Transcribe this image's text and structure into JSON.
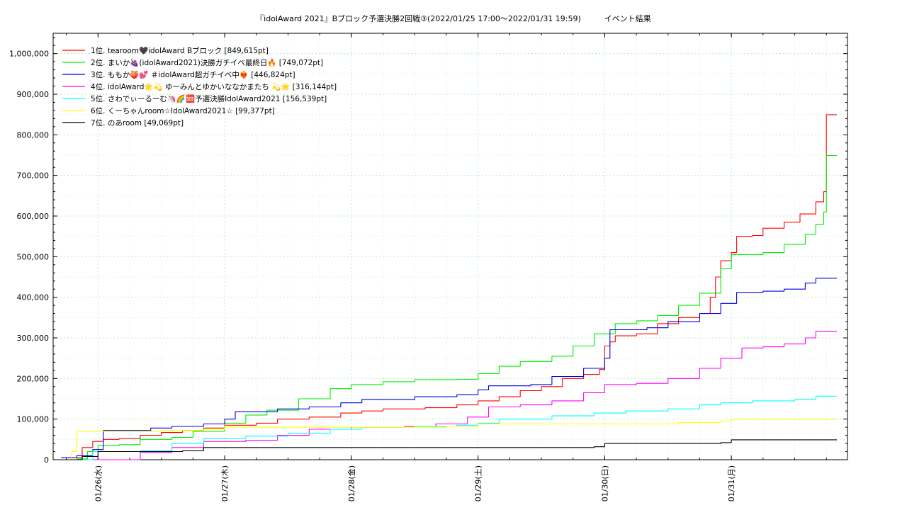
{
  "chart_data": {
    "type": "line",
    "title": "『idolAward 2021』Bブロック予選決勝2回戦③(2022/01/25 17:00～2022/01/31 19:59)　　　イベント結果",
    "xlabel": "",
    "ylabel": "",
    "x_range": [
      "2022/01/25 17:00",
      "2022/01/31 19:59"
    ],
    "ylim": [
      0,
      1050000
    ],
    "y_ticks": [
      0,
      100000,
      200000,
      300000,
      400000,
      500000,
      600000,
      700000,
      800000,
      900000,
      1000000
    ],
    "y_tick_labels": [
      "0",
      "100,000",
      "200,000",
      "300,000",
      "400,000",
      "500,000",
      "600,000",
      "700,000",
      "800,000",
      "900,000",
      "1,000,000"
    ],
    "x_ticks": [
      "01/26(水)",
      "01/27(木)",
      "01/28(金)",
      "01/29(土)",
      "01/30(日)",
      "01/31(月)"
    ],
    "grid": true,
    "legend_position": "top-left",
    "series": [
      {
        "name": "1位. tearoom🖤idolAward Bブロック [849,615pt]",
        "color": "#ff0000",
        "points": [
          [
            "01/25 17:00",
            0
          ],
          [
            "01/25 19:00",
            5000
          ],
          [
            "01/25 21:00",
            30000
          ],
          [
            "01/25 23:00",
            45000
          ],
          [
            "01/26 01:00",
            50000
          ],
          [
            "01/26 04:00",
            52000
          ],
          [
            "01/26 08:00",
            60000
          ],
          [
            "01/26 12:00",
            67000
          ],
          [
            "01/26 16:00",
            72000
          ],
          [
            "01/26 20:00",
            78000
          ],
          [
            "01/27 00:00",
            85000
          ],
          [
            "01/27 06:00",
            90000
          ],
          [
            "01/27 10:00",
            100000
          ],
          [
            "01/27 16:00",
            105000
          ],
          [
            "01/27 22:00",
            115000
          ],
          [
            "01/28 02:00",
            120000
          ],
          [
            "01/28 06:00",
            125000
          ],
          [
            "01/28 14:00",
            128000
          ],
          [
            "01/28 20:00",
            135000
          ],
          [
            "01/29 00:00",
            145000
          ],
          [
            "01/29 04:00",
            155000
          ],
          [
            "01/29 08:00",
            170000
          ],
          [
            "01/29 12:00",
            180000
          ],
          [
            "01/29 16:00",
            200000
          ],
          [
            "01/29 20:00",
            210000
          ],
          [
            "01/29 23:00",
            222000
          ],
          [
            "01/30 00:00",
            280000
          ],
          [
            "01/30 01:00",
            290000
          ],
          [
            "01/30 02:00",
            305000
          ],
          [
            "01/30 06:00",
            310000
          ],
          [
            "01/30 10:00",
            335000
          ],
          [
            "01/30 14:00",
            350000
          ],
          [
            "01/30 18:00",
            360000
          ],
          [
            "01/30 20:00",
            400000
          ],
          [
            "01/30 21:00",
            450000
          ],
          [
            "01/30 22:00",
            490000
          ],
          [
            "01/31 00:00",
            510000
          ],
          [
            "01/31 01:00",
            550000
          ],
          [
            "01/31 04:00",
            552000
          ],
          [
            "01/31 06:00",
            570000
          ],
          [
            "01/31 10:00",
            585000
          ],
          [
            "01/31 13:00",
            605000
          ],
          [
            "01/31 16:00",
            635000
          ],
          [
            "01/31 17:30",
            660000
          ],
          [
            "01/31 18:00",
            849615
          ],
          [
            "01/31 19:59",
            849615
          ]
        ]
      },
      {
        "name": "2位. まいか🍇(idolAward2021)決勝ガチイベ最終日🔥 [749,072pt]",
        "color": "#00ee00",
        "points": [
          [
            "01/25 17:00",
            0
          ],
          [
            "01/25 20:00",
            2000
          ],
          [
            "01/25 22:00",
            20000
          ],
          [
            "01/26 00:00",
            35000
          ],
          [
            "01/26 04:00",
            37000
          ],
          [
            "01/26 08:00",
            50000
          ],
          [
            "01/26 14:00",
            55000
          ],
          [
            "01/26 18:00",
            70000
          ],
          [
            "01/27 00:00",
            90000
          ],
          [
            "01/27 04:00",
            110000
          ],
          [
            "01/27 08:00",
            122000
          ],
          [
            "01/27 14:00",
            150000
          ],
          [
            "01/27 20:00",
            175000
          ],
          [
            "01/28 00:00",
            185000
          ],
          [
            "01/28 06:00",
            192000
          ],
          [
            "01/28 12:00",
            197000
          ],
          [
            "01/28 20:00",
            198000
          ],
          [
            "01/29 00:00",
            212000
          ],
          [
            "01/29 04:00",
            230000
          ],
          [
            "01/29 08:00",
            242000
          ],
          [
            "01/29 14:00",
            255000
          ],
          [
            "01/29 18:00",
            280000
          ],
          [
            "01/29 22:00",
            310000
          ],
          [
            "01/30 02:00",
            335000
          ],
          [
            "01/30 06:00",
            342000
          ],
          [
            "01/30 10:00",
            355000
          ],
          [
            "01/30 14:00",
            380000
          ],
          [
            "01/30 18:00",
            410000
          ],
          [
            "01/30 22:00",
            470000
          ],
          [
            "01/31 00:00",
            505000
          ],
          [
            "01/31 06:00",
            510000
          ],
          [
            "01/31 10:00",
            530000
          ],
          [
            "01/31 14:00",
            555000
          ],
          [
            "01/31 16:00",
            580000
          ],
          [
            "01/31 17:30",
            610000
          ],
          [
            "01/31 18:00",
            749072
          ],
          [
            "01/31 19:59",
            749072
          ]
        ]
      },
      {
        "name": "3位. ももか🍑💕 ＃idolAward超ガチイベ中❤️‍🔥 [446,824pt]",
        "color": "#0000dd",
        "points": [
          [
            "01/25 17:00",
            5000
          ],
          [
            "01/25 20:00",
            10000
          ],
          [
            "01/25 23:00",
            25000
          ],
          [
            "01/26 01:00",
            72000
          ],
          [
            "01/26 10:00",
            78000
          ],
          [
            "01/26 14:00",
            82000
          ],
          [
            "01/26 20:00",
            88000
          ],
          [
            "01/27 00:00",
            100000
          ],
          [
            "01/27 02:00",
            118000
          ],
          [
            "01/27 10:00",
            125000
          ],
          [
            "01/27 16:00",
            130000
          ],
          [
            "01/27 22:00",
            140000
          ],
          [
            "01/28 02:00",
            148000
          ],
          [
            "01/28 12:00",
            155000
          ],
          [
            "01/28 20:00",
            160000
          ],
          [
            "01/29 00:00",
            172000
          ],
          [
            "01/29 02:00",
            182000
          ],
          [
            "01/29 10:00",
            185000
          ],
          [
            "01/29 14:00",
            205000
          ],
          [
            "01/29 20:00",
            225000
          ],
          [
            "01/30 00:00",
            250000
          ],
          [
            "01/30 01:00",
            320000
          ],
          [
            "01/30 08:00",
            325000
          ],
          [
            "01/30 12:00",
            340000
          ],
          [
            "01/30 18:00",
            360000
          ],
          [
            "01/30 22:00",
            385000
          ],
          [
            "01/31 01:00",
            412000
          ],
          [
            "01/31 06:00",
            415000
          ],
          [
            "01/31 10:00",
            420000
          ],
          [
            "01/31 14:00",
            435000
          ],
          [
            "01/31 16:00",
            446824
          ],
          [
            "01/31 19:59",
            446824
          ]
        ]
      },
      {
        "name": "4位. idolAward🌟💫 ゆーみんとゆかいななかまたち 💫🌟 [316,144pt]",
        "color": "#ff00ff",
        "points": [
          [
            "01/25 17:00",
            0
          ],
          [
            "01/26 08:00",
            18000
          ],
          [
            "01/26 14:00",
            30000
          ],
          [
            "01/26 20:00",
            45000
          ],
          [
            "01/27 04:00",
            48000
          ],
          [
            "01/27 10:00",
            60000
          ],
          [
            "01/27 16:00",
            75000
          ],
          [
            "01/28 00:00",
            80000
          ],
          [
            "01/28 10:00",
            82000
          ],
          [
            "01/28 16:00",
            88000
          ],
          [
            "01/28 22:00",
            105000
          ],
          [
            "01/29 02:00",
            130000
          ],
          [
            "01/29 08:00",
            135000
          ],
          [
            "01/29 14:00",
            145000
          ],
          [
            "01/29 20:00",
            165000
          ],
          [
            "01/30 00:00",
            185000
          ],
          [
            "01/30 06:00",
            188000
          ],
          [
            "01/30 12:00",
            200000
          ],
          [
            "01/30 18:00",
            225000
          ],
          [
            "01/30 22:00",
            250000
          ],
          [
            "01/31 02:00",
            275000
          ],
          [
            "01/31 06:00",
            278000
          ],
          [
            "01/31 10:00",
            285000
          ],
          [
            "01/31 14:00",
            300000
          ],
          [
            "01/31 16:00",
            316144
          ],
          [
            "01/31 19:59",
            316144
          ]
        ]
      },
      {
        "name": "5位. さわでぃーるーむ🦄🌈🆘予選決勝IdolAward2021 [156,539pt]",
        "color": "#00ffff",
        "points": [
          [
            "01/25 17:00",
            0
          ],
          [
            "01/25 23:00",
            20000
          ],
          [
            "01/26 08:00",
            22000
          ],
          [
            "01/26 14:00",
            40000
          ],
          [
            "01/26 20:00",
            52000
          ],
          [
            "01/27 04:00",
            58000
          ],
          [
            "01/27 12:00",
            65000
          ],
          [
            "01/27 20:00",
            75000
          ],
          [
            "01/28 02:00",
            80000
          ],
          [
            "01/28 12:00",
            82000
          ],
          [
            "01/28 20:00",
            85000
          ],
          [
            "01/29 00:00",
            90000
          ],
          [
            "01/29 04:00",
            100000
          ],
          [
            "01/29 14:00",
            108000
          ],
          [
            "01/29 22:00",
            115000
          ],
          [
            "01/30 04:00",
            120000
          ],
          [
            "01/30 12:00",
            125000
          ],
          [
            "01/30 18:00",
            135000
          ],
          [
            "01/30 22:00",
            140000
          ],
          [
            "01/31 04:00",
            145000
          ],
          [
            "01/31 12:00",
            148000
          ],
          [
            "01/31 16:00",
            156539
          ],
          [
            "01/31 19:59",
            156539
          ]
        ]
      },
      {
        "name": "6位. くーちゃんroom☆IdolAward2021☆ [99,377pt]",
        "color": "#ffff00",
        "points": [
          [
            "01/25 17:00",
            0
          ],
          [
            "01/25 19:00",
            20000
          ],
          [
            "01/25 20:00",
            70000
          ],
          [
            "01/26 12:00",
            72000
          ],
          [
            "01/26 20:00",
            75000
          ],
          [
            "01/27 00:00",
            80000
          ],
          [
            "01/28 00:00",
            80000
          ],
          [
            "01/28 18:00",
            82000
          ],
          [
            "01/29 00:00",
            88000
          ],
          [
            "01/29 12:00",
            88000
          ],
          [
            "01/30 00:00",
            88000
          ],
          [
            "01/30 12:00",
            88000
          ],
          [
            "01/30 14:00",
            92000
          ],
          [
            "01/30 22:00",
            95000
          ],
          [
            "01/31 00:00",
            99377
          ],
          [
            "01/31 19:59",
            99377
          ]
        ]
      },
      {
        "name": "7位. のあroom [49,069pt]",
        "color": "#000000",
        "points": [
          [
            "01/25 17:00",
            0
          ],
          [
            "01/25 21:00",
            8000
          ],
          [
            "01/26 00:00",
            20000
          ],
          [
            "01/26 16:00",
            22000
          ],
          [
            "01/26 20:00",
            30000
          ],
          [
            "01/27 12:00",
            30000
          ],
          [
            "01/28 12:00",
            30000
          ],
          [
            "01/29 12:00",
            30000
          ],
          [
            "01/29 22:00",
            32000
          ],
          [
            "01/30 00:00",
            40000
          ],
          [
            "01/30 12:00",
            40000
          ],
          [
            "01/30 22:00",
            42000
          ],
          [
            "01/31 00:00",
            49069
          ],
          [
            "01/31 19:59",
            49069
          ]
        ]
      }
    ]
  }
}
